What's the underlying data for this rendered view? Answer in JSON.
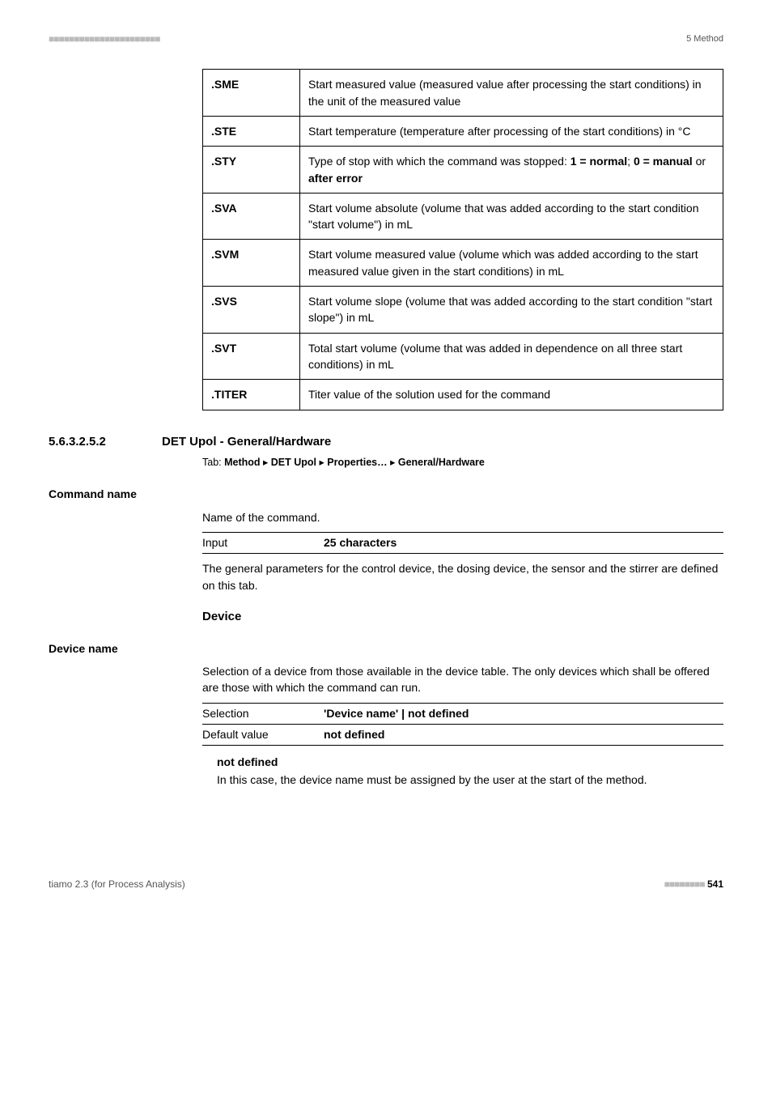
{
  "header": {
    "left_marks": "■■■■■■■■■■■■■■■■■■■■■■",
    "right": "5 Method"
  },
  "table": {
    "rows": [
      {
        "key": ".SME",
        "desc_parts": [
          "Start measured value (measured value after processing the start conditions) in the unit of the measured value"
        ]
      },
      {
        "key": ".STE",
        "desc_parts": [
          "Start temperature (temperature after processing of the start conditions) in °C"
        ]
      },
      {
        "key": ".STY",
        "desc_parts": [
          "Type of stop with which the command was stopped: ",
          {
            "b": "1 = normal"
          },
          "; ",
          {
            "b": "0 = manual"
          },
          " or ",
          {
            "b": "after error"
          }
        ]
      },
      {
        "key": ".SVA",
        "desc_parts": [
          "Start volume absolute (volume that was added according to the start condition \"start volume\") in mL"
        ]
      },
      {
        "key": ".SVM",
        "desc_parts": [
          "Start volume measured value (volume which was added according to the start measured value given in the start conditions) in mL"
        ]
      },
      {
        "key": ".SVS",
        "desc_parts": [
          "Start volume slope (volume that was added according to the start condition \"start slope\") in mL"
        ]
      },
      {
        "key": ".SVT",
        "desc_parts": [
          "Total start volume (volume that was added in dependence on all three start conditions) in mL"
        ]
      },
      {
        "key": ".TITER",
        "desc_parts": [
          "Titer value of the solution used for the command"
        ]
      }
    ]
  },
  "section": {
    "number": "5.6.3.2.5.2",
    "title": "DET Upol - General/Hardware",
    "tab_prefix": "Tab: ",
    "tab_path": [
      "Method",
      "DET Upol",
      "Properties…",
      "General/Hardware"
    ],
    "tab_sep": " ▸ "
  },
  "command_name": {
    "label": "Command name",
    "desc": "Name of the command.",
    "input_label": "Input",
    "input_value": "25 characters",
    "after": "The general parameters for the control device, the dosing device, the sensor and the stirrer are defined on this tab."
  },
  "device_heading": "Device",
  "device_name": {
    "label": "Device name",
    "desc": "Selection of a device from those available in the device table. The only devices which shall be offered are those with which the command can run.",
    "selection_label": "Selection",
    "selection_value": "'Device name' | not defined",
    "default_label": "Default value",
    "default_value": "not defined",
    "not_defined_title": "not defined",
    "not_defined_body": "In this case, the device name must be assigned by the user at the start of the method."
  },
  "footer": {
    "left": "tiamo 2.3 (for Process Analysis)",
    "right_marks": "■■■■■■■■",
    "page": "541"
  }
}
